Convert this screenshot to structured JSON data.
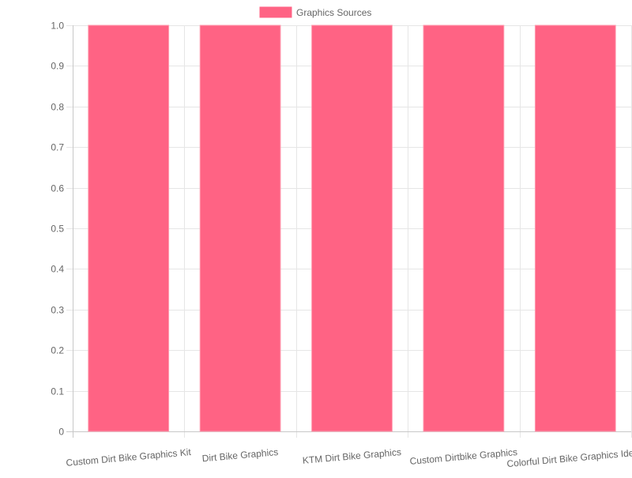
{
  "chart_data": {
    "type": "bar",
    "categories": [
      "Custom Dirt Bike Graphics Kit",
      "Dirt Bike Graphics",
      "KTM Dirt Bike Graphics",
      "Custom Dirtbike Graphics",
      "Colorful Dirt Bike Graphics Ideas"
    ],
    "series": [
      {
        "name": "Graphics Sources",
        "values": [
          1,
          1,
          1,
          1,
          1
        ],
        "color": "#ff6384"
      }
    ],
    "ylim": [
      0,
      1
    ],
    "yticks": [
      "0",
      "0.1",
      "0.2",
      "0.3",
      "0.4",
      "0.5",
      "0.6",
      "0.7",
      "0.8",
      "0.9",
      "1.0"
    ],
    "grid": true,
    "legend_position": "top-center"
  }
}
